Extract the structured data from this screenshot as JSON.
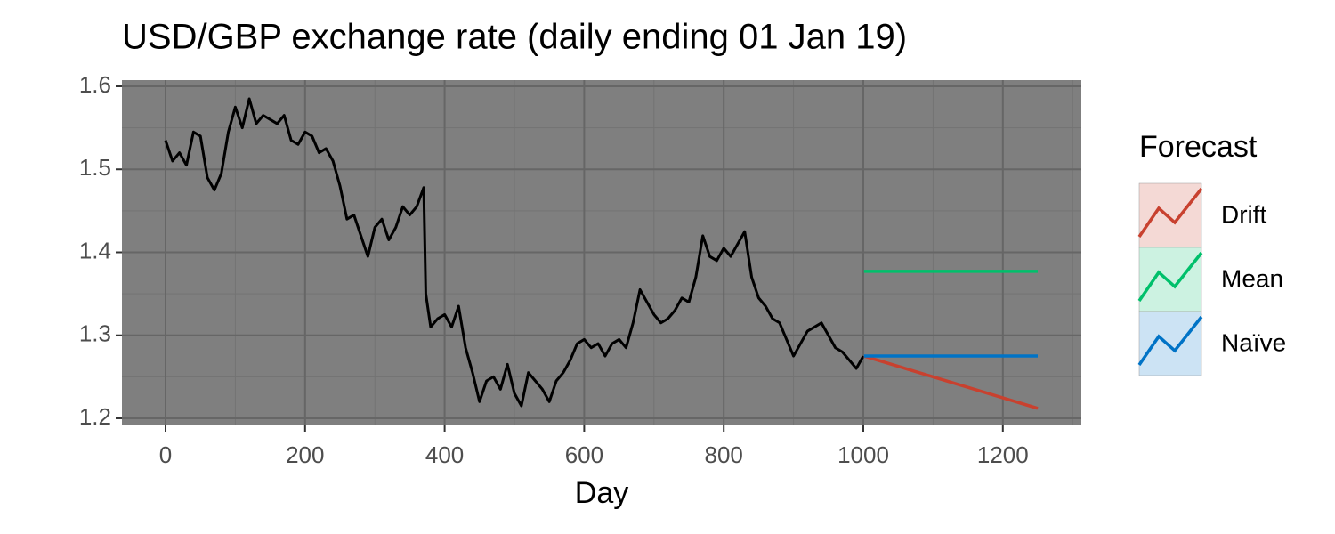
{
  "chart_data": {
    "type": "line",
    "title": "USD/GBP exchange rate (daily ending 01 Jan 19)",
    "x_label": "Day",
    "legend_title": "Forecast",
    "color": "#000000",
    "x": [
      0,
      10,
      20,
      30,
      40,
      50,
      60,
      70,
      80,
      90,
      100,
      110,
      120,
      130,
      140,
      150,
      160,
      170,
      180,
      190,
      200,
      210,
      220,
      230,
      240,
      250,
      260,
      270,
      280,
      290,
      300,
      310,
      320,
      330,
      340,
      350,
      360,
      370,
      373,
      380,
      390,
      400,
      410,
      420,
      430,
      440,
      450,
      460,
      470,
      480,
      490,
      500,
      510,
      520,
      530,
      540,
      550,
      560,
      570,
      580,
      590,
      600,
      610,
      620,
      630,
      640,
      650,
      660,
      670,
      680,
      690,
      700,
      710,
      720,
      730,
      740,
      750,
      760,
      770,
      780,
      790,
      800,
      810,
      820,
      830,
      840,
      850,
      860,
      870,
      880,
      890,
      900,
      910,
      920,
      930,
      940,
      950,
      960,
      970,
      980,
      990,
      1000
    ],
    "values": [
      1.535,
      1.51,
      1.52,
      1.505,
      1.545,
      1.54,
      1.49,
      1.475,
      1.495,
      1.545,
      1.575,
      1.55,
      1.585,
      1.555,
      1.565,
      1.56,
      1.555,
      1.565,
      1.535,
      1.53,
      1.545,
      1.54,
      1.52,
      1.525,
      1.51,
      1.48,
      1.44,
      1.445,
      1.42,
      1.395,
      1.43,
      1.44,
      1.415,
      1.43,
      1.455,
      1.445,
      1.455,
      1.478,
      1.35,
      1.31,
      1.32,
      1.325,
      1.31,
      1.335,
      1.285,
      1.255,
      1.22,
      1.245,
      1.25,
      1.235,
      1.265,
      1.23,
      1.215,
      1.255,
      1.245,
      1.235,
      1.22,
      1.245,
      1.255,
      1.27,
      1.29,
      1.295,
      1.285,
      1.29,
      1.275,
      1.29,
      1.295,
      1.285,
      1.315,
      1.355,
      1.34,
      1.325,
      1.315,
      1.32,
      1.33,
      1.345,
      1.34,
      1.37,
      1.42,
      1.395,
      1.39,
      1.405,
      1.395,
      1.41,
      1.425,
      1.37,
      1.345,
      1.335,
      1.32,
      1.315,
      1.295,
      1.275,
      1.29,
      1.305,
      1.31,
      1.315,
      1.3,
      1.285,
      1.28,
      1.27,
      1.26,
      1.275
    ],
    "series": [
      {
        "name": "Drift",
        "color": "#c8412f",
        "x": [
          1001,
          1250
        ],
        "values": [
          1.275,
          1.212
        ]
      },
      {
        "name": "Mean",
        "color": "#00c06b",
        "x": [
          1001,
          1250
        ],
        "values": [
          1.377,
          1.377
        ]
      },
      {
        "name": "Naïve",
        "color": "#0073c6",
        "x": [
          1001,
          1250
        ],
        "values": [
          1.275,
          1.275
        ]
      }
    ],
    "xlim": [
      -62.5,
      1312.5
    ],
    "ylim": [
      1.1914,
      1.6075
    ],
    "xticks": [
      0,
      200,
      400,
      600,
      800,
      1000,
      1200
    ],
    "yticks": [
      1.2,
      1.3,
      1.4,
      1.5,
      1.6
    ],
    "minor_xticks": [
      100,
      300,
      500,
      700,
      900,
      1100,
      1300
    ],
    "minor_yticks": [
      1.25,
      1.35,
      1.45,
      1.55
    ],
    "grid": true
  }
}
